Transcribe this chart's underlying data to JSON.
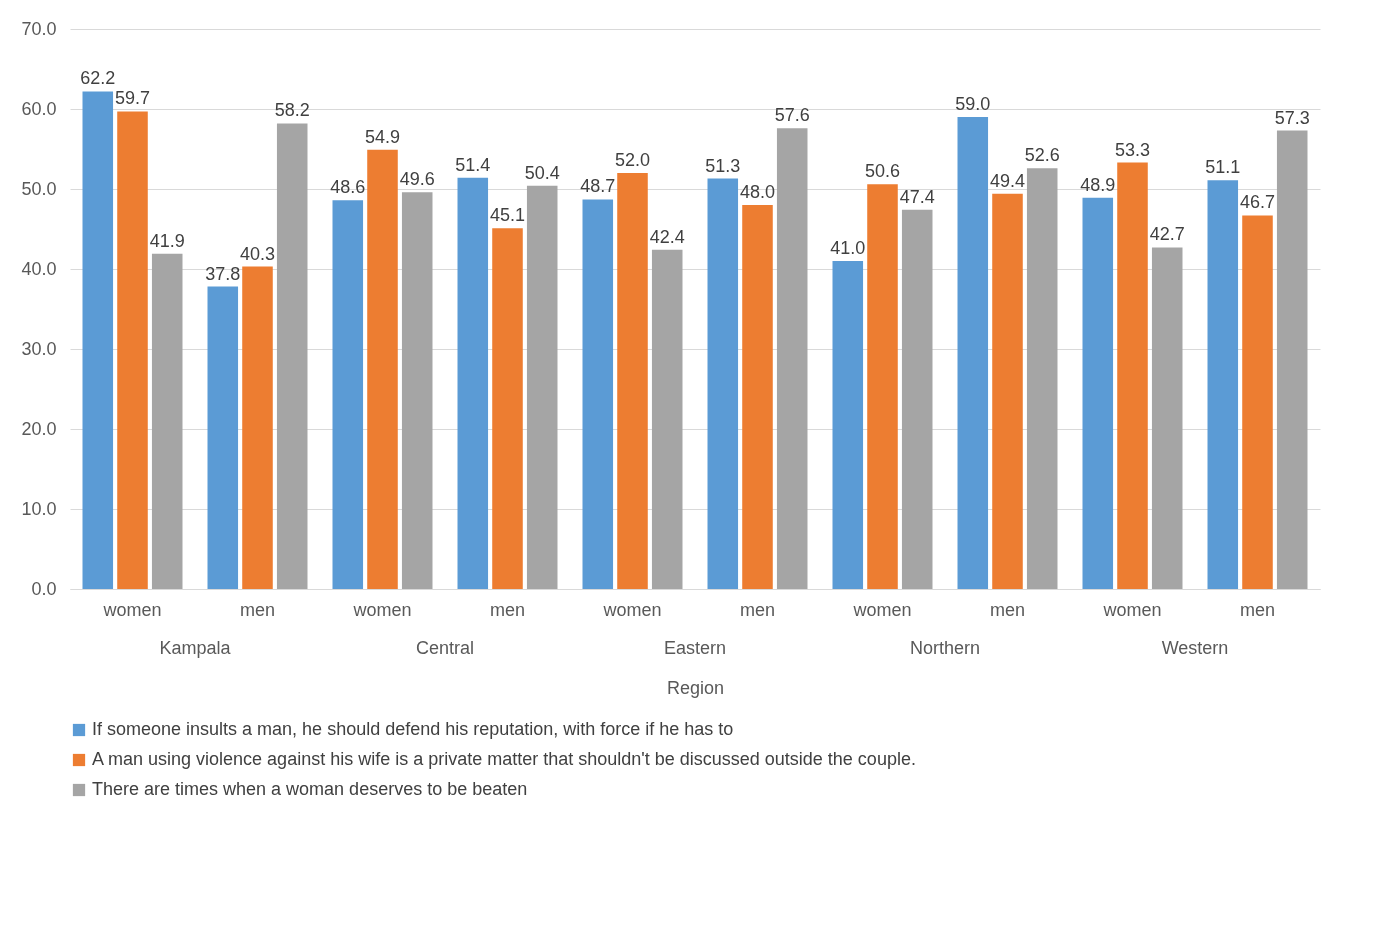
{
  "chart_data": {
    "type": "bar",
    "xlabel": "Region",
    "categories": [
      "women",
      "men",
      "women",
      "men",
      "women",
      "men",
      "women",
      "men",
      "women",
      "men"
    ],
    "annotations": [
      "Kampala",
      "Central",
      "Eastern",
      "Northern",
      "Western"
    ],
    "series": [
      {
        "name": "If someone insults a man, he should defend his reputation, with force if he has to",
        "color": "#5b9bd5",
        "values": [
          62.2,
          37.8,
          48.6,
          51.4,
          48.7,
          51.3,
          41.0,
          59.0,
          48.9,
          51.1
        ],
        "value_labels": [
          "62.2",
          "37.8",
          "48.6",
          "51.4",
          "48.7",
          "51.3",
          "41.0",
          "59.0",
          "48.9",
          "51.1"
        ]
      },
      {
        "name": "A man using violence against his wife is a private matter that shouldn't be discussed outside the couple.",
        "color": "#ed7d31",
        "values": [
          59.7,
          40.3,
          54.9,
          45.1,
          52.0,
          48.0,
          50.6,
          49.4,
          53.3,
          46.7
        ],
        "value_labels": [
          "59.7",
          "40.3",
          "54.9",
          "45.1",
          "52.0",
          "48.0",
          "50.6",
          "49.4",
          "53.3",
          "46.7"
        ]
      },
      {
        "name": "There are times when a woman deserves to be beaten",
        "color": "#a5a5a5",
        "values": [
          41.9,
          58.2,
          49.6,
          50.4,
          42.4,
          57.6,
          47.4,
          52.6,
          42.7,
          57.3
        ],
        "value_labels": [
          "41.9",
          "58.2",
          "49.6",
          "50.4",
          "42.4",
          "57.6",
          "47.4",
          "52.6",
          "42.7",
          "57.3"
        ]
      }
    ],
    "ylim": [
      0,
      70
    ],
    "yticks": [
      {
        "value": 0,
        "label": "0.0"
      },
      {
        "value": 10,
        "label": "10.0"
      },
      {
        "value": 20,
        "label": "20.0"
      },
      {
        "value": 30,
        "label": "30.0"
      },
      {
        "value": 40,
        "label": "40.0"
      },
      {
        "value": 50,
        "label": "50.0"
      },
      {
        "value": 60,
        "label": "60.0"
      },
      {
        "value": 70,
        "label": "70.0"
      }
    ],
    "grid": "y",
    "legend": "bottom"
  }
}
